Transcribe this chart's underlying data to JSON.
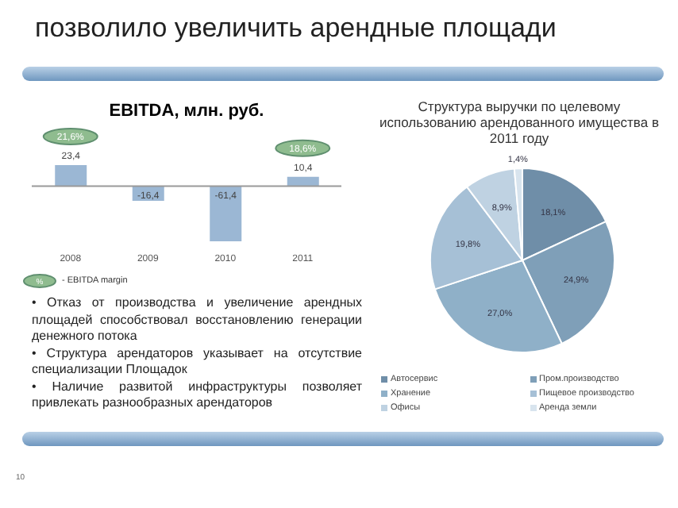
{
  "chart_data": [
    {
      "type": "bar",
      "title": "EBITDA, млн. руб.",
      "categories": [
        "2008",
        "2009",
        "2010",
        "2011"
      ],
      "values": [
        23.4,
        -16.4,
        -61.4,
        10.4
      ],
      "value_labels": [
        "23,4",
        "-16,4",
        "-61,4",
        "10,4"
      ],
      "color": "#9bb7d4",
      "annotations": [
        {
          "text": "21,6%",
          "x": "2008",
          "y": 23.4
        },
        {
          "text": "18,6%",
          "x": "2011",
          "y": 10.4
        },
        "%",
        "- EBITDA margin"
      ]
    },
    {
      "type": "pie",
      "title": "Структура выручки по целевому использованию арендованного имущества в 2011 году",
      "categories": [
        "Автосервис",
        "Пром.производство",
        "Хранение",
        "Пищевое производство",
        "Офисы",
        "Аренда земли"
      ],
      "values": [
        18.1,
        24.9,
        27.0,
        19.8,
        8.9,
        1.4
      ],
      "value_labels": [
        "18,1%",
        "24,9%",
        "27,0%",
        "19,8%",
        "8,9%",
        "1,4%"
      ],
      "colors": [
        "#6f8ea8",
        "#7f9fb8",
        "#8fb0c8",
        "#a6c0d6",
        "#bfd2e2",
        "#d8e4ee"
      ],
      "legend": "bottom"
    },
    {
      "type": "other",
      "title": "позволило увеличить арендные площади",
      "annotations": [
        "• Отказ от производства и увеличение арендных площадей способствовал восстановлению генерации денежного потока",
        "• Структура арендаторов указывает на отсутствие специализации Площадок",
        "• Наличие развитой инфраструктуры позволяет привлекать разнообразных арендаторов",
        "10"
      ]
    }
  ]
}
